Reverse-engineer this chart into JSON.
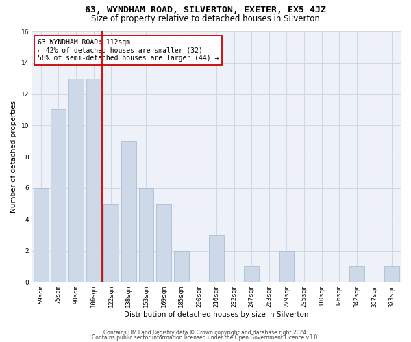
{
  "title": "63, WYNDHAM ROAD, SILVERTON, EXETER, EX5 4JZ",
  "subtitle": "Size of property relative to detached houses in Silverton",
  "xlabel": "Distribution of detached houses by size in Silverton",
  "ylabel": "Number of detached properties",
  "categories": [
    "59sqm",
    "75sqm",
    "90sqm",
    "106sqm",
    "122sqm",
    "138sqm",
    "153sqm",
    "169sqm",
    "185sqm",
    "200sqm",
    "216sqm",
    "232sqm",
    "247sqm",
    "263sqm",
    "279sqm",
    "295sqm",
    "310sqm",
    "326sqm",
    "342sqm",
    "357sqm",
    "373sqm"
  ],
  "values": [
    6,
    11,
    13,
    13,
    5,
    9,
    6,
    5,
    2,
    0,
    3,
    0,
    1,
    0,
    2,
    0,
    0,
    0,
    1,
    0,
    1
  ],
  "bar_color": "#cdd9e8",
  "bar_edgecolor": "#a8bfd4",
  "vline_x": 3.5,
  "vline_color": "#cc0000",
  "annotation_line1": "63 WYNDHAM ROAD: 112sqm",
  "annotation_line2": "← 42% of detached houses are smaller (32)",
  "annotation_line3": "58% of semi-detached houses are larger (44) →",
  "annotation_box_edgecolor": "#cc0000",
  "ylim": [
    0,
    16
  ],
  "yticks": [
    0,
    2,
    4,
    6,
    8,
    10,
    12,
    14,
    16
  ],
  "grid_color": "#d0d8e8",
  "background_color": "#eef2f8",
  "footer_line1": "Contains HM Land Registry data © Crown copyright and database right 2024.",
  "footer_line2": "Contains public sector information licensed under the Open Government Licence v3.0.",
  "title_fontsize": 9.5,
  "subtitle_fontsize": 8.5,
  "axis_label_fontsize": 7.5,
  "tick_fontsize": 6.5,
  "annotation_fontsize": 7,
  "footer_fontsize": 5.5
}
